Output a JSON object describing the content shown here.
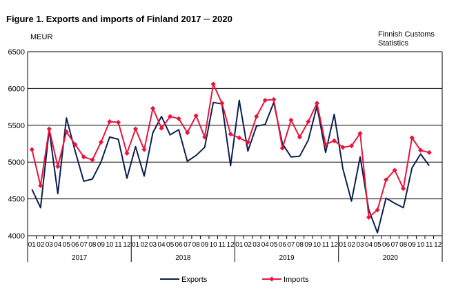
{
  "title": "Figure 1. Exports and imports of Finland 2017 ─ 2020",
  "unit": "MEUR",
  "source": [
    "Finnish Customs",
    "Statistics"
  ],
  "chart_data": {
    "type": "line",
    "ylim": [
      4000,
      6500
    ],
    "yticks": [
      4000,
      4500,
      5000,
      5500,
      6000,
      6500
    ],
    "month_labels": [
      "01",
      "02",
      "03",
      "04",
      "05",
      "06",
      "07",
      "08",
      "09",
      "10",
      "11",
      "12"
    ],
    "years": [
      "2017",
      "2018",
      "2019",
      "2020"
    ],
    "months_in_year": [
      12,
      12,
      12,
      11
    ],
    "grid": "horizontal",
    "legend_position": "bottom-center",
    "series": [
      {
        "name": "Exports",
        "color": "#0a1f4f",
        "marker": "none",
        "values": [
          4630,
          4380,
          5440,
          4570,
          5600,
          5150,
          4740,
          4770,
          5000,
          5340,
          5310,
          4780,
          5210,
          4810,
          5400,
          5620,
          5370,
          5440,
          5010,
          5090,
          5200,
          5810,
          5790,
          4950,
          5840,
          5150,
          5490,
          5510,
          5810,
          5250,
          5070,
          5080,
          5300,
          5760,
          5130,
          5650,
          4910,
          4470,
          5070,
          4350,
          4040,
          4510,
          4440,
          4380,
          4920,
          5110,
          4950
        ]
      },
      {
        "name": "Imports",
        "color": "#e8143c",
        "marker": "diamond",
        "values": [
          5170,
          4680,
          5450,
          4940,
          5410,
          5240,
          5070,
          5030,
          5270,
          5550,
          5540,
          5120,
          5450,
          5170,
          5730,
          5460,
          5620,
          5590,
          5400,
          5630,
          5340,
          6060,
          5800,
          5380,
          5330,
          5270,
          5620,
          5840,
          5850,
          5190,
          5570,
          5340,
          5550,
          5800,
          5240,
          5290,
          5200,
          5220,
          5390,
          4250,
          4350,
          4760,
          4890,
          4640,
          5330,
          5160,
          5130
        ]
      }
    ]
  }
}
